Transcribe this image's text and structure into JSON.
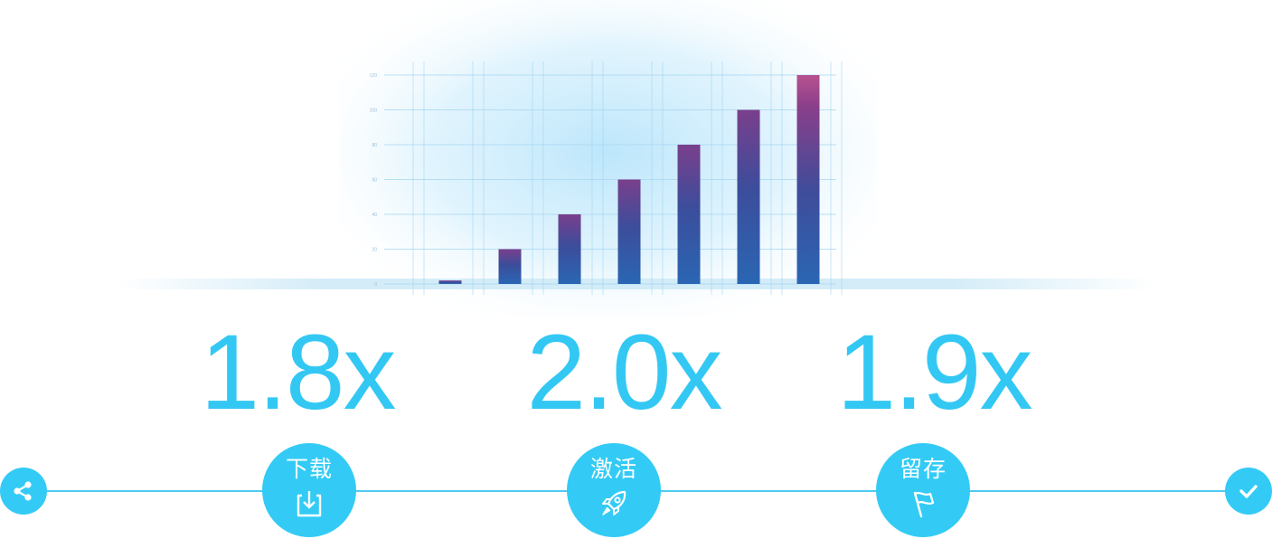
{
  "chart_data": {
    "type": "bar",
    "categories": [
      "",
      "",
      "",
      "",
      "",
      "",
      ""
    ],
    "values": [
      2,
      20,
      40,
      60,
      80,
      100,
      120
    ],
    "ylim": [
      0,
      120
    ],
    "y_ticks": [
      0,
      20,
      40,
      60,
      80,
      100,
      120
    ],
    "grid": true,
    "colors": {
      "bar_bottom": "#2a62b0",
      "bar_mid": "#3d4f9c",
      "bar_top": "#b0508e",
      "glow": "#bfe6fb"
    }
  },
  "stats": [
    {
      "value": "1.8x"
    },
    {
      "value": "2.0x"
    },
    {
      "value": "1.9x"
    }
  ],
  "stages": [
    {
      "label": "下载",
      "icon": "download-icon"
    },
    {
      "label": "激活",
      "icon": "rocket-icon"
    },
    {
      "label": "留存",
      "icon": "flag-icon"
    }
  ],
  "timeline": {
    "start_icon": "share-icon",
    "end_icon": "check-icon",
    "accent": "#33cbf5"
  }
}
